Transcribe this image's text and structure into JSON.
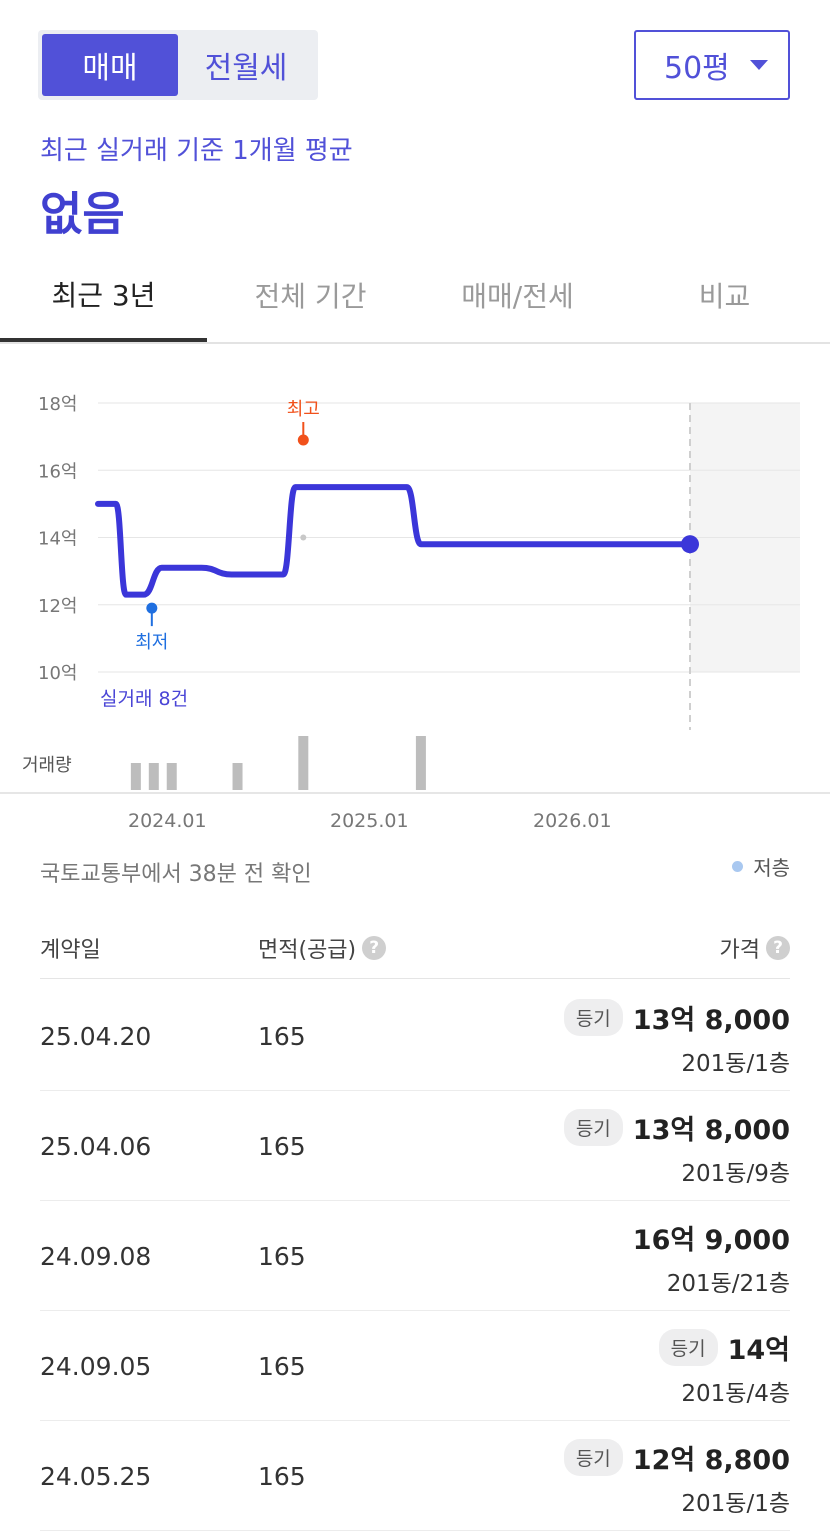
{
  "toggle": {
    "active": "매매",
    "inactive": "전월세"
  },
  "size_select": {
    "value": "50평"
  },
  "summary": {
    "subtitle": "최근 실거래 기준 1개월 평균",
    "value": "없음"
  },
  "tabs": [
    {
      "label": "최근 3년",
      "active": true
    },
    {
      "label": "전체 기간",
      "active": false
    },
    {
      "label": "매매/전세",
      "active": false
    },
    {
      "label": "비교",
      "active": false
    }
  ],
  "chart_data": {
    "type": "line",
    "ylim": [
      10,
      18
    ],
    "y_ticks": [
      "18억",
      "16억",
      "14억",
      "12억",
      "10억"
    ],
    "y_tick_values": [
      18,
      16,
      14,
      12,
      10
    ],
    "x_ticks": [
      "2024.01",
      "2025.01",
      "2026.01"
    ],
    "x_tick_values": [
      2024.0,
      2025.0,
      2026.0
    ],
    "series": [
      {
        "x": [
          2023.63,
          2023.72,
          2023.77,
          2023.86,
          2023.95,
          2024.05,
          2024.15,
          2024.3,
          2024.45,
          2024.56,
          2024.62,
          2024.68,
          2024.75,
          2025.0,
          2025.18,
          2025.25,
          2025.31,
          2025.6,
          2026.0,
          2026.3,
          2026.6
        ],
        "values": [
          15.0,
          15.0,
          12.3,
          12.3,
          13.1,
          13.1,
          13.1,
          12.9,
          12.9,
          12.9,
          15.5,
          15.5,
          15.5,
          15.5,
          15.5,
          13.8,
          13.8,
          13.8,
          13.8,
          13.8,
          13.8
        ],
        "color": "#3b36d9"
      }
    ],
    "annotations": {
      "high": {
        "label": "최고",
        "x": 2024.66,
        "value": 16.9,
        "color": "#f1511b"
      },
      "low": {
        "label": "최저",
        "x": 2023.9,
        "value": 11.9,
        "color": "#1f6fe0"
      },
      "trade_count": "실거래 8건"
    },
    "volume": {
      "label": "거래량",
      "x": [
        2023.82,
        2023.91,
        2024.0,
        2024.33,
        2024.66,
        2025.25
      ],
      "values": [
        1,
        1,
        1,
        1,
        2,
        2
      ]
    },
    "shaded_from_x": 2026.6
  },
  "source_text": "국토교통부에서 38분 전 확인",
  "legend_low_floor": "저층",
  "table": {
    "headers": {
      "date": "계약일",
      "area": "면적(공급)",
      "price": "가격"
    },
    "rows": [
      {
        "date": "25.04.20",
        "area": "165",
        "badge": "등기",
        "price": "13억 8,000",
        "floor": "201동/1층"
      },
      {
        "date": "25.04.06",
        "area": "165",
        "badge": "등기",
        "price": "13억 8,000",
        "floor": "201동/9층"
      },
      {
        "date": "24.09.08",
        "area": "165",
        "badge": "",
        "price": "16억 9,000",
        "floor": "201동/21층"
      },
      {
        "date": "24.09.05",
        "area": "165",
        "badge": "등기",
        "price": "14억",
        "floor": "201동/4층"
      },
      {
        "date": "24.05.25",
        "area": "165",
        "badge": "등기",
        "price": "12억 8,800",
        "floor": "201동/1층"
      }
    ]
  }
}
